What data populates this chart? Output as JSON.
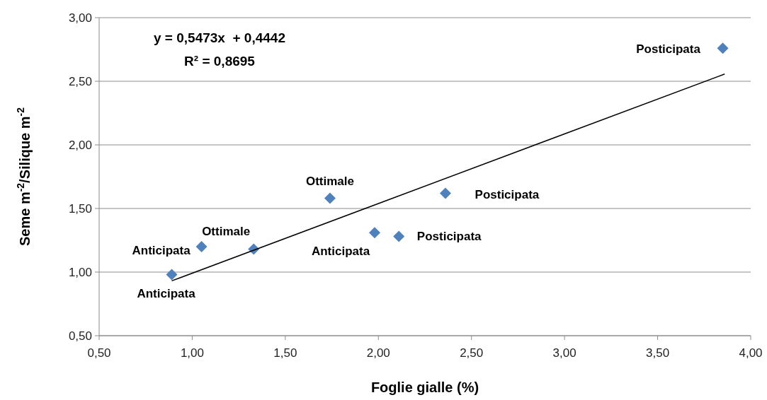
{
  "chart_data": {
    "type": "scatter",
    "xlabel": "Foglie gialle (%)",
    "ylabel": "Seme m$^{-2}$/Silique m$^{-2}$",
    "series": [
      {
        "marker": "diamond",
        "color": "#4f81bd",
        "x": [
          0.89,
          1.05,
          1.33,
          1.74,
          1.98,
          2.11,
          2.36,
          3.85
        ],
        "values": [
          0.98,
          1.2,
          1.18,
          1.58,
          1.31,
          1.28,
          1.62,
          2.76
        ]
      },
      {
        "type": "line",
        "color": "#000000",
        "x": [
          0.89,
          3.86
        ],
        "values": [
          0.931,
          2.557
        ]
      }
    ],
    "xlim": [
      0.5,
      4.0
    ],
    "xticks": [
      {
        "value": 0.5,
        "label": "0,50"
      },
      {
        "value": 1.0,
        "label": "1,00"
      },
      {
        "value": 1.5,
        "label": "1,50"
      },
      {
        "value": 2.0,
        "label": "2,00"
      },
      {
        "value": 2.5,
        "label": "2,50"
      },
      {
        "value": 3.0,
        "label": "3,00"
      },
      {
        "value": 3.5,
        "label": "3,50"
      },
      {
        "value": 4.0,
        "label": "4,00"
      }
    ],
    "ylim": [
      0.5,
      3.0
    ],
    "yticks": [
      {
        "value": 0.5,
        "label": "0,50"
      },
      {
        "value": 1.0,
        "label": "1,00"
      },
      {
        "value": 1.5,
        "label": "1,50"
      },
      {
        "value": 2.0,
        "label": "2,00"
      },
      {
        "value": 2.5,
        "label": "2,50"
      },
      {
        "value": 3.0,
        "label": "3,00"
      }
    ],
    "grid": "y",
    "annotations": [
      "y = 0,5473x  + 0,4442",
      "R² = 0,8695",
      {
        "text": "Anticipata",
        "x": 0.89,
        "y": 0.98
      },
      {
        "text": "Anticipata",
        "x": 1.05,
        "y": 1.2
      },
      {
        "text": "Ottimale",
        "x": 1.33,
        "y": 1.18
      },
      {
        "text": "Ottimale",
        "x": 1.74,
        "y": 1.58
      },
      {
        "text": "Anticipata",
        "x": 1.98,
        "y": 1.31
      },
      {
        "text": "Posticipata",
        "x": 2.11,
        "y": 1.28
      },
      {
        "text": "Posticipata",
        "x": 2.36,
        "y": 1.62
      },
      {
        "text": "Posticipata",
        "x": 3.85,
        "y": 2.76
      }
    ]
  }
}
